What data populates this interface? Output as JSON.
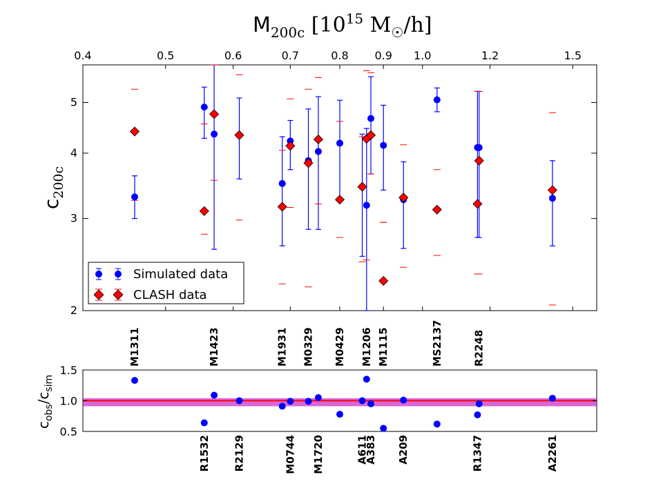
{
  "chart_data": [
    {
      "type": "scatter",
      "title": "M200c [10^15 M☉/h]",
      "ylabel": "c200c",
      "xscale": "log",
      "yscale": "log",
      "xlim": [
        0.4,
        1.6
      ],
      "ylim": [
        2.0,
        5.9
      ],
      "xticks": [
        0.4,
        0.5,
        0.6,
        0.7,
        0.8,
        0.9,
        1.0,
        1.2,
        1.5
      ],
      "xtick_labels": [
        "0.4",
        "0.5",
        "0.6",
        "0.7",
        "0.8",
        "0.9",
        "1.0",
        "1.2",
        "1.5"
      ],
      "yticks": [
        2,
        3,
        4,
        5
      ],
      "ytick_labels": [
        "2",
        "3",
        "4",
        "5"
      ],
      "legend": {
        "position": "lower-left",
        "entries": [
          {
            "label": "Simulated data",
            "series": "sim"
          },
          {
            "label": "CLASH data",
            "series": "clash"
          }
        ]
      },
      "clusters": [
        {
          "name": "M1311",
          "label_side": "top",
          "mass": 0.46,
          "sim": 3.3,
          "sim_lo": 3.0,
          "sim_hi": 3.62,
          "clash": 4.4,
          "clash_lo": 3.25,
          "clash_hi": 5.3
        },
        {
          "name": "R1532",
          "label_side": "bottom",
          "mass": 0.555,
          "sim": 4.9,
          "sim_lo": 4.27,
          "sim_hi": 5.35,
          "clash": 3.1,
          "clash_lo": 2.8,
          "clash_hi": 4.55
        },
        {
          "name": "M1423",
          "label_side": "top",
          "mass": 0.57,
          "sim": 4.35,
          "sim_lo": 2.62,
          "sim_hi": 5.9,
          "clash": 4.75,
          "clash_lo": 3.55,
          "clash_hi": 5.9
        },
        {
          "name": "R2129",
          "label_side": "bottom",
          "mass": 0.61,
          "sim": 4.33,
          "sim_lo": 3.57,
          "sim_hi": 5.1,
          "clash": 4.33,
          "clash_lo": 2.98,
          "clash_hi": 5.65
        },
        {
          "name": "M1931",
          "label_side": "top",
          "mass": 0.685,
          "sim": 3.5,
          "sim_lo": 2.66,
          "sim_hi": 4.3,
          "clash": 3.16,
          "clash_lo": 2.25,
          "clash_hi": 4.05
        },
        {
          "name": "M0744",
          "label_side": "bottom",
          "mass": 0.7,
          "sim": 4.22,
          "sim_lo": 3.72,
          "sim_hi": 4.62,
          "clash": 4.13,
          "clash_lo": 3.15,
          "clash_hi": 5.08
        },
        {
          "name": "M0329",
          "label_side": "top",
          "mass": 0.735,
          "sim": 3.87,
          "sim_lo": 2.86,
          "sim_hi": 4.86,
          "clash": 3.83,
          "clash_lo": 2.22,
          "clash_hi": 5.3
        },
        {
          "name": "M1720",
          "label_side": "bottom",
          "mass": 0.755,
          "sim": 4.03,
          "sim_lo": 2.86,
          "sim_hi": 5.13,
          "clash": 4.25,
          "clash_lo": 3.2,
          "clash_hi": 5.58
        },
        {
          "name": "M0429",
          "label_side": "top",
          "mass": 0.8,
          "sim": 4.18,
          "sim_lo": 3.26,
          "sim_hi": 5.05,
          "clash": 3.26,
          "clash_lo": 2.76,
          "clash_hi": 4.6
        },
        {
          "name": "A611",
          "label_side": "bottom",
          "mass": 0.85,
          "sim": 3.45,
          "sim_lo": 2.54,
          "sim_hi": 4.35,
          "clash": 3.45,
          "clash_lo": 2.48,
          "clash_hi": 4.3
        },
        {
          "name": "M1206",
          "label_side": "top",
          "mass": 0.86,
          "sim": 3.18,
          "sim_lo": 2.0,
          "sim_hi": 4.46,
          "clash": 4.26,
          "clash_lo": 2.5,
          "clash_hi": 5.75
        },
        {
          "name": "A383",
          "label_side": "bottom",
          "mass": 0.87,
          "sim": 4.66,
          "sim_lo": 3.65,
          "sim_hi": 5.6,
          "clash": 4.33,
          "clash_lo": 3.65,
          "clash_hi": 5.7
        },
        {
          "name": "M1115",
          "label_side": "top",
          "mass": 0.9,
          "sim": 4.14,
          "sim_lo": 3.4,
          "sim_hi": 4.94,
          "clash": 2.28,
          "clash_lo": 2.95,
          "clash_hi": 2.95
        },
        {
          "name": "A209",
          "label_side": "bottom",
          "mass": 0.95,
          "sim": 3.26,
          "sim_lo": 2.63,
          "sim_hi": 3.85,
          "clash": 3.29,
          "clash_lo": 2.42,
          "clash_hi": 4.15
        },
        {
          "name": "MS2137",
          "label_side": "top",
          "mass": 1.04,
          "sim": 5.06,
          "sim_lo": 4.8,
          "sim_hi": 5.33,
          "clash": 3.12,
          "clash_lo": 2.55,
          "clash_hi": 3.72
        },
        {
          "name": "R1347",
          "label_side": "bottom",
          "mass": 1.16,
          "sim": 4.1,
          "sim_lo": 2.76,
          "sim_hi": 5.25,
          "clash": 3.2,
          "clash_lo": 2.35,
          "clash_hi": 5.25
        },
        {
          "name": "R2248",
          "label_side": "top",
          "mass": 1.165,
          "sim": 4.1,
          "sim_lo": 2.76,
          "sim_hi": 5.25,
          "clash": 3.87,
          "clash_lo": 2.35,
          "clash_hi": 5.25
        },
        {
          "name": "A2261",
          "label_side": "bottom",
          "mass": 1.42,
          "sim": 3.28,
          "sim_lo": 2.66,
          "sim_hi": 3.87,
          "clash": 3.4,
          "clash_lo": 2.05,
          "clash_hi": 4.78
        }
      ]
    },
    {
      "type": "scatter",
      "ylabel": "cobs/csim",
      "ylim": [
        0.5,
        1.5
      ],
      "yticks": [
        0.5,
        1.0,
        1.5
      ],
      "ytick_labels": [
        "0.5",
        "1.0",
        "1.5"
      ],
      "reference_line": 1.0,
      "band": [
        0.91,
        1.04
      ],
      "ratios": [
        {
          "name": "M1311",
          "mass": 0.46,
          "ratio": 1.33
        },
        {
          "name": "R1532",
          "mass": 0.555,
          "ratio": 0.64
        },
        {
          "name": "M1423",
          "mass": 0.57,
          "ratio": 1.09
        },
        {
          "name": "R2129",
          "mass": 0.61,
          "ratio": 1.0
        },
        {
          "name": "M1931",
          "mass": 0.685,
          "ratio": 0.91
        },
        {
          "name": "M0744",
          "mass": 0.7,
          "ratio": 0.99
        },
        {
          "name": "M0329",
          "mass": 0.735,
          "ratio": 0.99
        },
        {
          "name": "M1720",
          "mass": 0.755,
          "ratio": 1.05
        },
        {
          "name": "M0429",
          "mass": 0.8,
          "ratio": 0.78
        },
        {
          "name": "A611",
          "mass": 0.85,
          "ratio": 1.0
        },
        {
          "name": "M1206",
          "mass": 0.86,
          "ratio": 1.35
        },
        {
          "name": "A383",
          "mass": 0.87,
          "ratio": 0.95
        },
        {
          "name": "M1115",
          "mass": 0.9,
          "ratio": 0.55
        },
        {
          "name": "A209",
          "mass": 0.95,
          "ratio": 1.01
        },
        {
          "name": "MS2137",
          "mass": 1.04,
          "ratio": 0.62
        },
        {
          "name": "R1347",
          "mass": 1.16,
          "ratio": 0.77
        },
        {
          "name": "R2248",
          "mass": 1.165,
          "ratio": 0.95
        },
        {
          "name": "A2261",
          "mass": 1.42,
          "ratio": 1.04
        }
      ]
    }
  ],
  "colors": {
    "sim": "#0000ff",
    "clash": "#ff0000",
    "ratio_points": "#0000ff",
    "reference_line": "#ff0000",
    "band": "#cc33cc"
  }
}
